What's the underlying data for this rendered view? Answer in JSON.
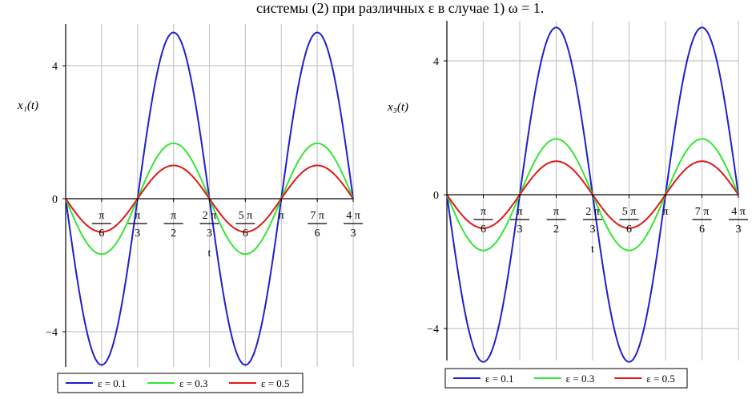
{
  "caption": "системы (2) при различных ε в случае 1) ω = 1.",
  "colors": {
    "blue": "#1f1fd0",
    "green": "#33e633",
    "red": "#e01818",
    "grid": "#c8c8c8"
  },
  "chart_data": [
    {
      "type": "line",
      "ylabel": "x₁(t)",
      "xlabel": "t",
      "xlim": [
        0,
        4.18879
      ],
      "ylim": [
        -5.3,
        5.1
      ],
      "grid": true,
      "legend_position": "bottom",
      "yticks": [
        {
          "value": -4,
          "label": "−4"
        },
        {
          "value": 0,
          "label": "0"
        },
        {
          "value": 4,
          "label": "4"
        }
      ],
      "xticks": [
        {
          "value": 0.5236,
          "num": "π",
          "den": "6"
        },
        {
          "value": 1.0472,
          "num": "π",
          "den": "3"
        },
        {
          "value": 1.5708,
          "num": "π",
          "den": "2"
        },
        {
          "value": 2.0944,
          "num": "2 π",
          "den": "3"
        },
        {
          "value": 2.618,
          "num": "5 π",
          "den": "6"
        },
        {
          "value": 3.1416,
          "num": "π",
          "den": ""
        },
        {
          "value": 3.6652,
          "num": "7 π",
          "den": "6"
        },
        {
          "value": 4.1888,
          "num": "4 π",
          "den": "3"
        }
      ],
      "series": [
        {
          "name": "ε = 0.1",
          "color": "#1f1fd0",
          "amplitude": 5.0
        },
        {
          "name": "ε = 0.3",
          "color": "#33e633",
          "amplitude": 1.667
        },
        {
          "name": "ε = 0.5",
          "color": "#e01818",
          "amplitude": 1.0
        }
      ]
    },
    {
      "type": "line",
      "ylabel": "x₃(t)",
      "xlabel": "t",
      "xlim": [
        0,
        4.18879
      ],
      "ylim": [
        -5.3,
        5.1
      ],
      "grid": true,
      "legend_position": "bottom",
      "yticks": [
        {
          "value": -4,
          "label": "−4"
        },
        {
          "value": 0,
          "label": "0"
        },
        {
          "value": 4,
          "label": "4"
        }
      ],
      "xticks": [
        {
          "value": 0.5236,
          "num": "π",
          "den": "6"
        },
        {
          "value": 1.0472,
          "num": "π",
          "den": "3"
        },
        {
          "value": 1.5708,
          "num": "π",
          "den": "2"
        },
        {
          "value": 2.0944,
          "num": "2 π",
          "den": "3"
        },
        {
          "value": 2.618,
          "num": "5 π",
          "den": "6"
        },
        {
          "value": 3.1416,
          "num": "π",
          "den": ""
        },
        {
          "value": 3.6652,
          "num": "7 π",
          "den": "6"
        },
        {
          "value": 4.1888,
          "num": "4 π",
          "den": "3"
        }
      ],
      "series": [
        {
          "name": "ε = 0.1",
          "color": "#1f1fd0",
          "amplitude": 5.0
        },
        {
          "name": "ε = 0.3",
          "color": "#33e633",
          "amplitude": 1.667
        },
        {
          "name": "ε = 0.5",
          "color": "#e01818",
          "amplitude": 1.0
        }
      ]
    }
  ]
}
